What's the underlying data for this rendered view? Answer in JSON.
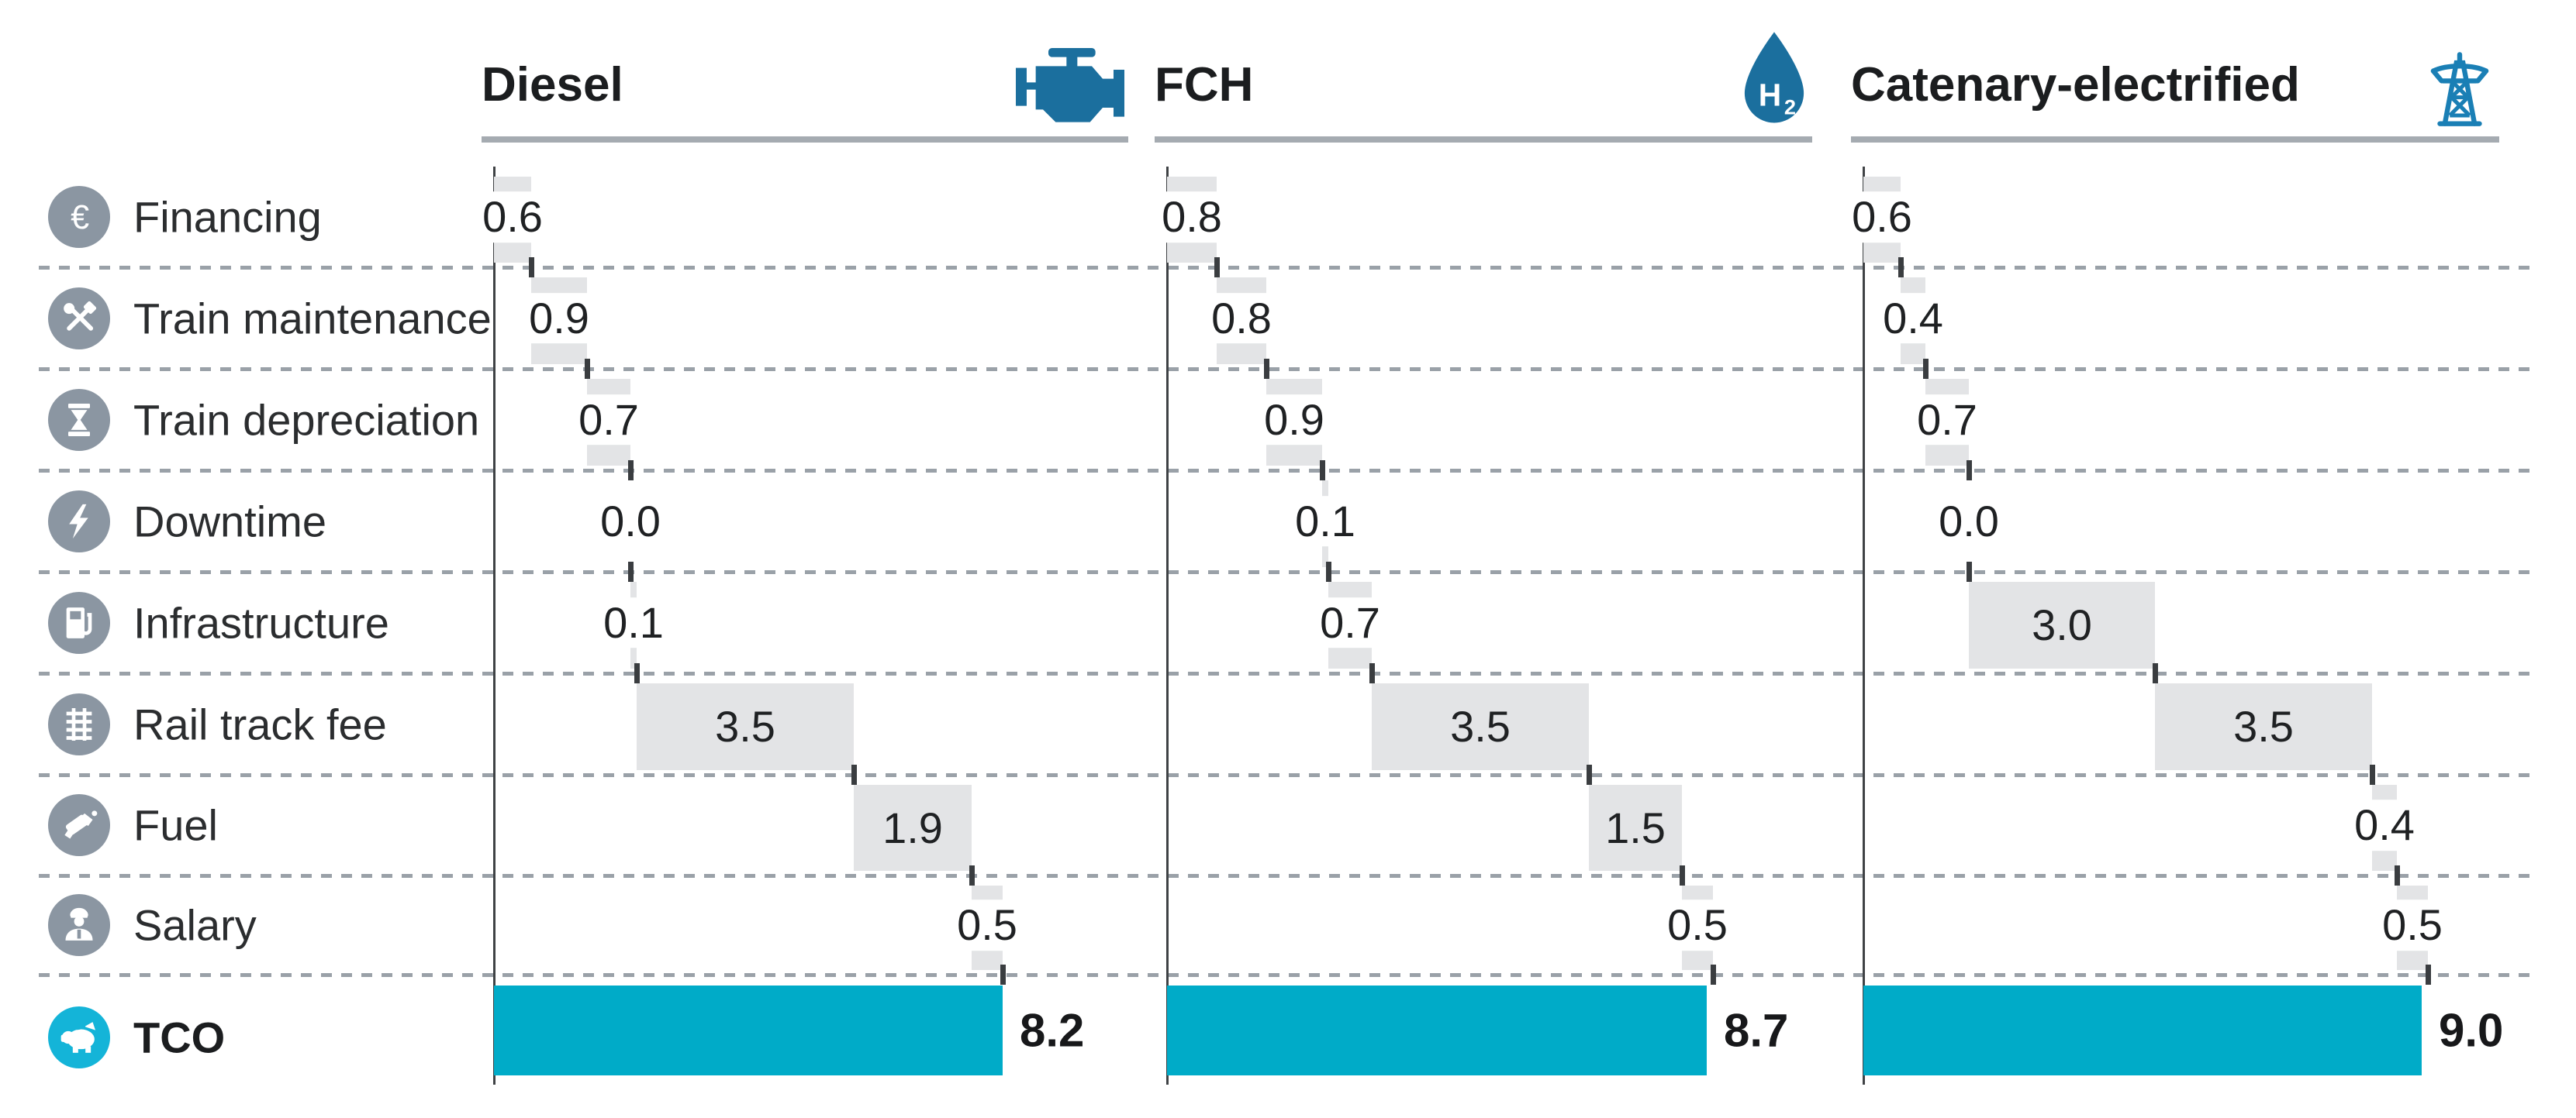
{
  "chart_data": {
    "type": "bar",
    "subtype": "horizontal-waterfall-comparison",
    "title": "",
    "orientation": "horizontal",
    "grid": "dashed horizontal row separators",
    "legend_position": "none",
    "row_categories": [
      {
        "label": "Financing",
        "icon": "euro-icon"
      },
      {
        "label": "Train maintenance",
        "icon": "tools-icon"
      },
      {
        "label": "Train depreciation",
        "icon": "hourglass-icon"
      },
      {
        "label": "Downtime",
        "icon": "bolt-icon"
      },
      {
        "label": "Infrastructure",
        "icon": "fuel-pump-icon"
      },
      {
        "label": "Rail track fee",
        "icon": "rail-track-icon"
      },
      {
        "label": "Fuel",
        "icon": "fuel-nozzle-icon"
      },
      {
        "label": "Salary",
        "icon": "conductor-icon"
      },
      {
        "label": "TCO",
        "icon": "piggy-bank-icon"
      }
    ],
    "columns": [
      {
        "name": "Diesel",
        "icon": "engine-icon",
        "values": [
          0.6,
          0.9,
          0.7,
          0.0,
          0.1,
          3.5,
          1.9,
          0.5
        ],
        "labels": [
          "0.6",
          "0.9",
          "0.7",
          "0.0",
          "0.1",
          "3.5",
          "1.9",
          "0.5"
        ],
        "tco": 8.2,
        "tco_label": "8.2"
      },
      {
        "name": "FCH",
        "icon": "h2-droplet-icon",
        "values": [
          0.8,
          0.8,
          0.9,
          0.1,
          0.7,
          3.5,
          1.5,
          0.5
        ],
        "labels": [
          "0.8",
          "0.8",
          "0.9",
          "0.1",
          "0.7",
          "3.5",
          "1.5",
          "0.5"
        ],
        "tco": 8.7,
        "tco_label": "8.7"
      },
      {
        "name": "Catenary-electrified",
        "icon": "power-tower-icon",
        "values": [
          0.6,
          0.4,
          0.7,
          0.0,
          3.0,
          3.5,
          0.4,
          0.5
        ],
        "labels": [
          "0.6",
          "0.4",
          "0.7",
          "0.0",
          "3.0",
          "3.5",
          "0.4",
          "0.5"
        ],
        "tco": 9.0,
        "tco_label": "9.0"
      }
    ],
    "colors": {
      "bar": "#e3e4e6",
      "tco": "#00abc8",
      "icon_circle": "#8b96a2",
      "tco_icon_circle": "#14b4d8",
      "header_icon_blue": "#1b6f9e",
      "tower_blue": "#1a7fb5",
      "axis": "#3f4245",
      "dash": "#9aa1a8",
      "underline": "#a5abb1"
    }
  }
}
